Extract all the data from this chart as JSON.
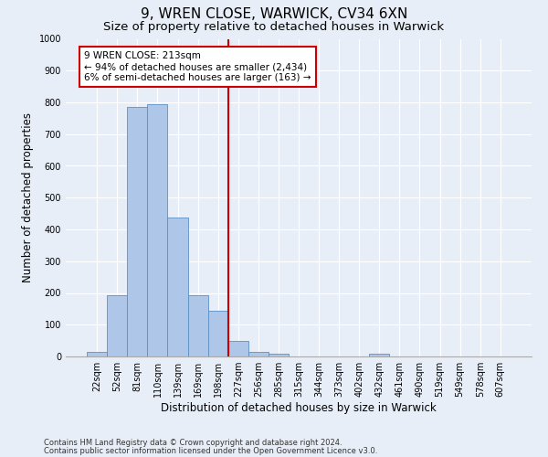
{
  "title1": "9, WREN CLOSE, WARWICK, CV34 6XN",
  "title2": "Size of property relative to detached houses in Warwick",
  "xlabel": "Distribution of detached houses by size in Warwick",
  "ylabel": "Number of detached properties",
  "footnote1": "Contains HM Land Registry data © Crown copyright and database right 2024.",
  "footnote2": "Contains public sector information licensed under the Open Government Licence v3.0.",
  "bar_labels": [
    "22sqm",
    "52sqm",
    "81sqm",
    "110sqm",
    "139sqm",
    "169sqm",
    "198sqm",
    "227sqm",
    "256sqm",
    "285sqm",
    "315sqm",
    "344sqm",
    "373sqm",
    "402sqm",
    "432sqm",
    "461sqm",
    "490sqm",
    "519sqm",
    "549sqm",
    "578sqm",
    "607sqm"
  ],
  "bar_values": [
    15,
    193,
    787,
    793,
    437,
    192,
    143,
    48,
    13,
    9,
    0,
    0,
    0,
    0,
    9,
    0,
    0,
    0,
    0,
    0,
    0
  ],
  "bar_color": "#aec6e8",
  "bar_edge_color": "#5b8fc4",
  "vline_x": 6.5,
  "vline_color": "#cc0000",
  "annotation_text": "9 WREN CLOSE: 213sqm\n← 94% of detached houses are smaller (2,434)\n6% of semi-detached houses are larger (163) →",
  "annotation_box_color": "#cc0000",
  "ylim": [
    0,
    1000
  ],
  "yticks": [
    0,
    100,
    200,
    300,
    400,
    500,
    600,
    700,
    800,
    900,
    1000
  ],
  "background_color": "#e8eef7",
  "grid_color": "#ffffff",
  "title1_fontsize": 11,
  "title2_fontsize": 9.5,
  "xlabel_fontsize": 8.5,
  "ylabel_fontsize": 8.5,
  "tick_fontsize": 7,
  "annot_fontsize": 7.5,
  "footnote_fontsize": 6
}
